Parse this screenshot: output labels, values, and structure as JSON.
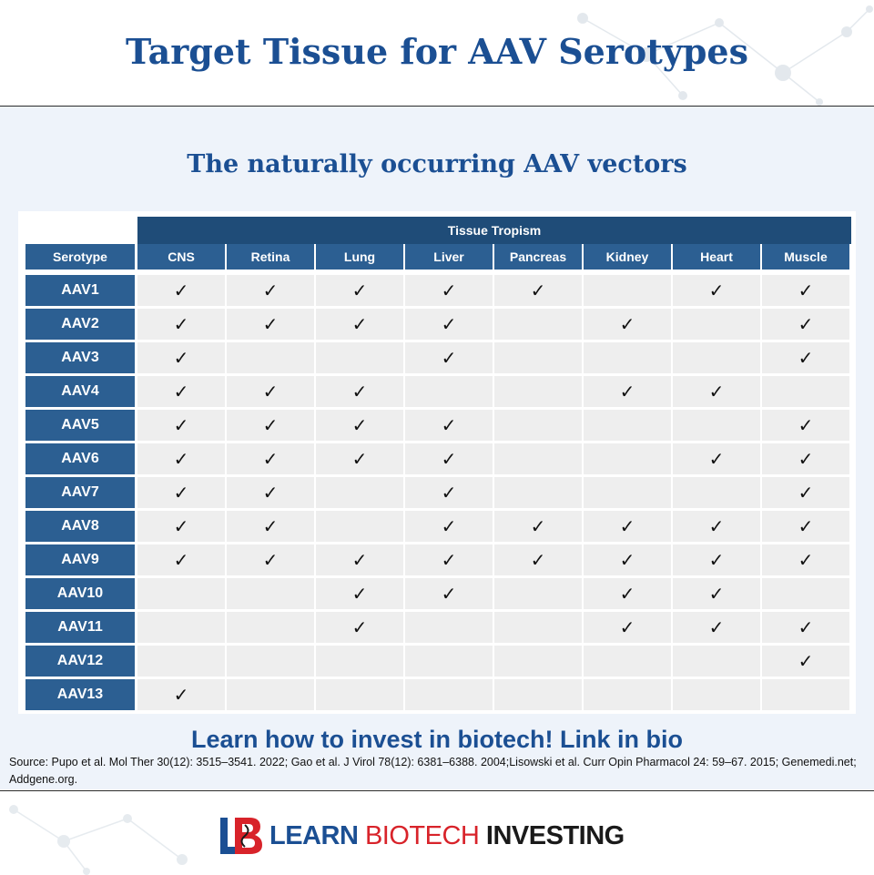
{
  "header": {
    "title": "Target Tissue for AAV Serotypes"
  },
  "main": {
    "subtitle": "The naturally occurring AAV vectors"
  },
  "table": {
    "group_header": "Tissue Tropism",
    "row_header": "Serotype",
    "columns": [
      "CNS",
      "Retina",
      "Lung",
      "Liver",
      "Pancreas",
      "Kidney",
      "Heart",
      "Muscle"
    ],
    "check_glyph": "✓",
    "rows": [
      {
        "label": "AAV1",
        "checks": [
          1,
          1,
          1,
          1,
          1,
          0,
          1,
          1
        ]
      },
      {
        "label": "AAV2",
        "checks": [
          1,
          1,
          1,
          1,
          0,
          1,
          0,
          1
        ]
      },
      {
        "label": "AAV3",
        "checks": [
          1,
          0,
          0,
          1,
          0,
          0,
          0,
          1
        ]
      },
      {
        "label": "AAV4",
        "checks": [
          1,
          1,
          1,
          0,
          0,
          1,
          1,
          0
        ]
      },
      {
        "label": "AAV5",
        "checks": [
          1,
          1,
          1,
          1,
          0,
          0,
          0,
          1
        ]
      },
      {
        "label": "AAV6",
        "checks": [
          1,
          1,
          1,
          1,
          0,
          0,
          1,
          1
        ]
      },
      {
        "label": "AAV7",
        "checks": [
          1,
          1,
          0,
          1,
          0,
          0,
          0,
          1
        ]
      },
      {
        "label": "AAV8",
        "checks": [
          1,
          1,
          0,
          1,
          1,
          1,
          1,
          1
        ]
      },
      {
        "label": "AAV9",
        "checks": [
          1,
          1,
          1,
          1,
          1,
          1,
          1,
          1
        ]
      },
      {
        "label": "AAV10",
        "checks": [
          0,
          0,
          1,
          1,
          0,
          1,
          1,
          0
        ]
      },
      {
        "label": "AAV11",
        "checks": [
          0,
          0,
          1,
          0,
          0,
          1,
          1,
          1
        ]
      },
      {
        "label": "AAV12",
        "checks": [
          0,
          0,
          0,
          0,
          0,
          0,
          0,
          1
        ]
      },
      {
        "label": "AAV13",
        "checks": [
          1,
          0,
          0,
          0,
          0,
          0,
          0,
          0
        ]
      }
    ]
  },
  "cta": "Learn how to invest in biotech! Link in bio",
  "source": "Source: Pupo et al. Mol Ther 30(12): 3515–3541. 2022; Gao et al. J Virol 78(12): 6381–6388. 2004;Lisowski et al. Curr Opin Pharmacol 24: 59–67. 2015; Genemedi.net; Addgene.org.",
  "footer": {
    "logo_word_learn": "LEARN",
    "logo_word_biotech": "BIOTECH",
    "logo_word_investing": "INVESTING"
  },
  "colors": {
    "brand_blue": "#1b4f93",
    "header_cell": "#2c5f92",
    "tropism_bar": "#1f4c78",
    "cell_gray": "#eeeeee",
    "brand_red": "#d8232a"
  }
}
